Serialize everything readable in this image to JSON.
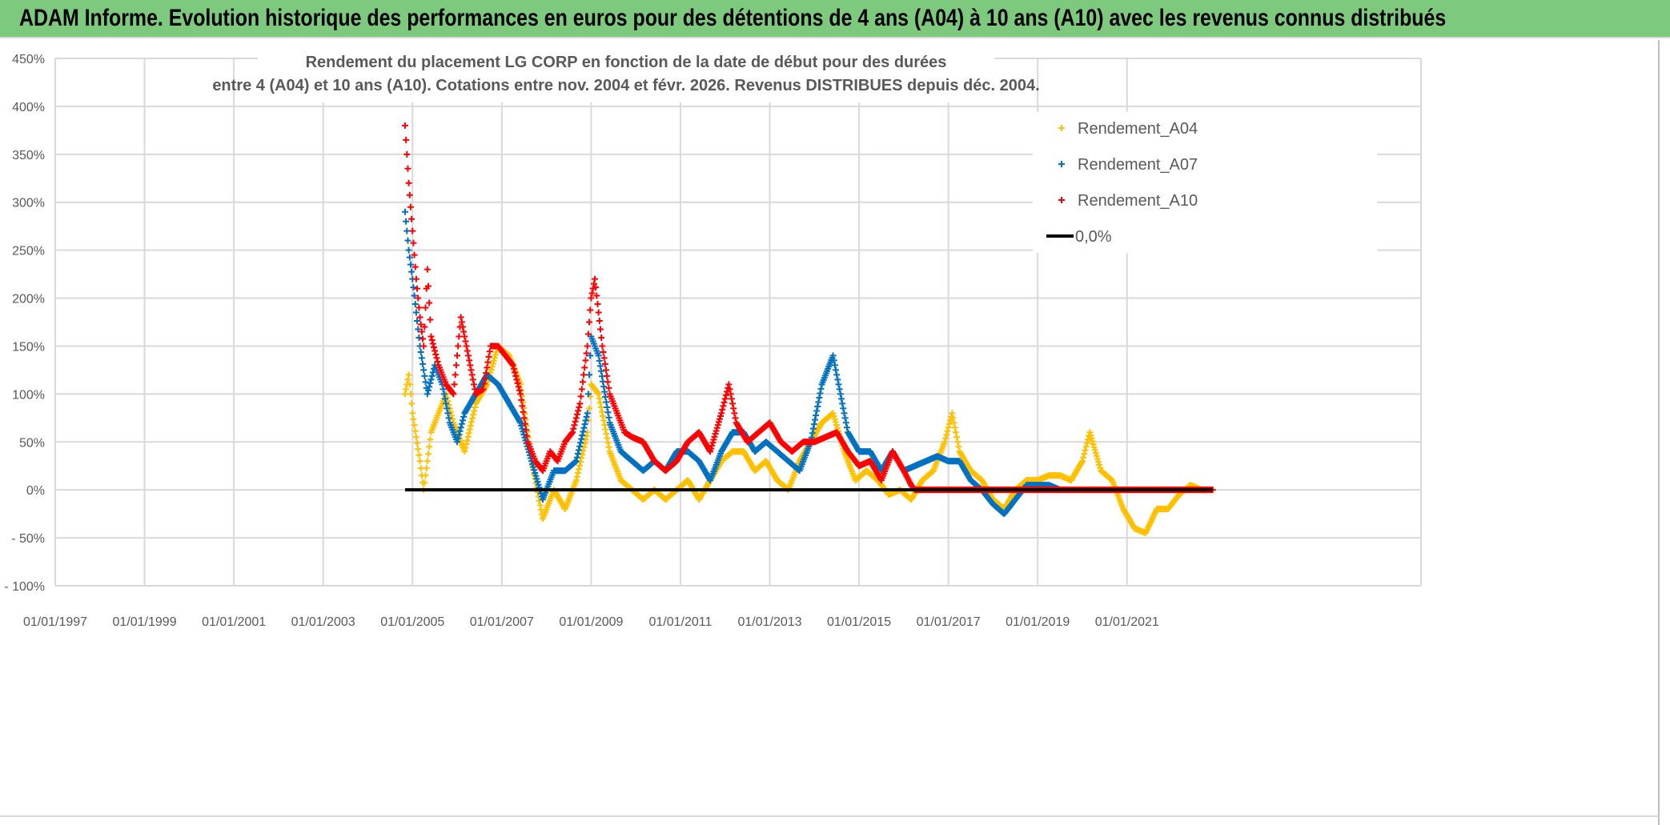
{
  "header": {
    "title": "ADAM Informe. Evolution historique des performances en euros pour des détentions de 4 ans (A04) à 10 ans (A10) avec les revenus connus distribués"
  },
  "chart_data": {
    "type": "scatter",
    "title_lines": [
      "Rendement du placement LG CORP en fonction de la date de début pour des durées",
      "entre 4 (A04) et 10 ans (A10). Cotations entre nov. 2004 et févr. 2026. Revenus DISTRIBUES depuis déc. 2004."
    ],
    "xlabel": "",
    "ylabel": "",
    "xlim": [
      "1997-01-01",
      "2027-08-01"
    ],
    "ylim": [
      -100,
      450
    ],
    "grid": true,
    "legend_position": "top-right",
    "x_tick_labels": [
      "01/01/1997",
      "01/01/1999",
      "01/01/2001",
      "01/01/2003",
      "01/01/2005",
      "01/01/2007",
      "01/01/2009",
      "01/01/2011",
      "01/01/2013",
      "01/01/2015",
      "01/01/2017",
      "01/01/2019",
      "01/01/2021"
    ],
    "y_ticks": [
      450,
      400,
      350,
      300,
      250,
      200,
      150,
      100,
      50,
      0,
      -50,
      -100
    ],
    "y_tick_labels": [
      "450%",
      "400%",
      "350%",
      "300%",
      "250%",
      "200%",
      "150%",
      "100%",
      "50%",
      "0%",
      "- 50%",
      "- 100%"
    ],
    "series": [
      {
        "name": "Rendement_A04",
        "color": "#ffc000",
        "marker": "plus",
        "x": [
          "2004-11",
          "2004-12",
          "2005-01",
          "2005-03",
          "2005-04",
          "2005-06",
          "2005-08",
          "2005-10",
          "2005-12",
          "2006-03",
          "2006-06",
          "2006-09",
          "2006-12",
          "2007-03",
          "2007-06",
          "2007-09",
          "2007-12",
          "2008-03",
          "2008-06",
          "2008-09",
          "2008-12",
          "2009-01",
          "2009-03",
          "2009-06",
          "2009-09",
          "2009-12",
          "2010-03",
          "2010-06",
          "2010-09",
          "2010-12",
          "2011-03",
          "2011-06",
          "2011-09",
          "2011-12",
          "2012-03",
          "2012-06",
          "2012-09",
          "2012-12",
          "2013-03",
          "2013-06",
          "2013-09",
          "2013-12",
          "2014-03",
          "2014-06",
          "2014-09",
          "2014-12",
          "2015-03",
          "2015-06",
          "2015-09",
          "2015-12",
          "2016-03",
          "2016-06",
          "2016-09",
          "2016-12",
          "2017-02",
          "2017-04",
          "2017-07",
          "2017-10",
          "2018-01",
          "2018-04",
          "2018-07",
          "2018-10",
          "2019-01",
          "2019-04",
          "2019-07",
          "2019-10",
          "2020-01",
          "2020-03",
          "2020-06",
          "2020-09",
          "2020-12",
          "2021-03",
          "2021-06",
          "2021-09",
          "2021-12",
          "2022-03",
          "2022-06",
          "2022-09",
          "2022-12"
        ],
        "y": [
          100,
          120,
          80,
          30,
          0,
          60,
          80,
          100,
          70,
          40,
          90,
          110,
          150,
          140,
          110,
          30,
          -30,
          0,
          -20,
          10,
          60,
          110,
          100,
          40,
          10,
          0,
          -10,
          0,
          -10,
          0,
          10,
          -10,
          10,
          30,
          40,
          40,
          20,
          30,
          10,
          0,
          30,
          50,
          70,
          80,
          40,
          10,
          20,
          10,
          -5,
          0,
          -10,
          10,
          20,
          50,
          80,
          40,
          20,
          10,
          -10,
          -20,
          0,
          10,
          10,
          15,
          15,
          10,
          30,
          60,
          20,
          10,
          -20,
          -40,
          -45,
          -20,
          -20,
          -5,
          5,
          0,
          0
        ]
      },
      {
        "name": "Rendement_A07",
        "color": "#0070c0",
        "marker": "plus",
        "x": [
          "2004-11",
          "2004-12",
          "2005-01",
          "2005-03",
          "2005-05",
          "2005-07",
          "2005-09",
          "2005-11",
          "2006-01",
          "2006-03",
          "2006-06",
          "2006-09",
          "2006-12",
          "2007-03",
          "2007-06",
          "2007-09",
          "2007-12",
          "2008-03",
          "2008-06",
          "2008-09",
          "2008-12",
          "2009-01",
          "2009-03",
          "2009-06",
          "2009-09",
          "2009-12",
          "2010-03",
          "2010-06",
          "2010-09",
          "2010-12",
          "2011-03",
          "2011-06",
          "2011-09",
          "2011-12",
          "2012-03",
          "2012-06",
          "2012-09",
          "2012-12",
          "2013-03",
          "2013-06",
          "2013-09",
          "2013-12",
          "2014-03",
          "2014-06",
          "2014-08",
          "2014-10",
          "2015-01",
          "2015-04",
          "2015-07",
          "2015-10",
          "2016-01",
          "2016-04",
          "2016-07",
          "2016-10",
          "2017-01",
          "2017-04",
          "2017-07",
          "2017-10",
          "2018-01",
          "2018-04",
          "2018-07",
          "2018-10",
          "2019-01",
          "2019-04",
          "2019-07"
        ],
        "y": [
          290,
          250,
          220,
          150,
          100,
          130,
          110,
          70,
          50,
          80,
          100,
          120,
          110,
          90,
          70,
          30,
          -10,
          20,
          20,
          30,
          80,
          160,
          140,
          70,
          40,
          30,
          20,
          30,
          20,
          40,
          40,
          30,
          10,
          40,
          60,
          60,
          40,
          50,
          40,
          30,
          20,
          50,
          110,
          140,
          100,
          60,
          40,
          40,
          20,
          40,
          20,
          25,
          30,
          35,
          30,
          30,
          10,
          0,
          -15,
          -25,
          -10,
          5,
          5,
          5,
          0
        ]
      },
      {
        "name": "Rendement_A10",
        "color": "#ff0000",
        "marker": "plus",
        "x": [
          "2004-11",
          "2004-12",
          "2005-01",
          "2005-02",
          "2005-03",
          "2005-04",
          "2005-05",
          "2005-06",
          "2005-08",
          "2005-10",
          "2005-12",
          "2006-02",
          "2006-04",
          "2006-06",
          "2006-08",
          "2006-10",
          "2006-12",
          "2007-02",
          "2007-04",
          "2007-06",
          "2007-08",
          "2007-10",
          "2007-12",
          "2008-02",
          "2008-04",
          "2008-06",
          "2008-08",
          "2008-10",
          "2008-12",
          "2009-01",
          "2009-02",
          "2009-04",
          "2009-06",
          "2009-08",
          "2009-10",
          "2009-12",
          "2010-03",
          "2010-06",
          "2010-09",
          "2010-12",
          "2011-03",
          "2011-06",
          "2011-09",
          "2011-12",
          "2012-02",
          "2012-04",
          "2012-07",
          "2012-10",
          "2013-01",
          "2013-04",
          "2013-07",
          "2013-10",
          "2014-01",
          "2014-04",
          "2014-07",
          "2014-10",
          "2015-01",
          "2015-04",
          "2015-07",
          "2015-10",
          "2016-01",
          "2016-03",
          "2016-04",
          "2022-12"
        ],
        "y": [
          380,
          320,
          270,
          220,
          180,
          150,
          230,
          160,
          130,
          110,
          100,
          180,
          140,
          100,
          105,
          150,
          150,
          140,
          130,
          100,
          50,
          30,
          20,
          40,
          30,
          50,
          60,
          90,
          150,
          200,
          220,
          150,
          100,
          80,
          60,
          55,
          50,
          30,
          20,
          30,
          50,
          60,
          40,
          80,
          110,
          70,
          50,
          60,
          70,
          50,
          40,
          50,
          50,
          55,
          60,
          40,
          25,
          30,
          10,
          40,
          20,
          5,
          0,
          0
        ]
      },
      {
        "name": "0,0%",
        "color": "#000000",
        "marker": "line",
        "x": [
          "2004-11",
          "2022-12"
        ],
        "y": [
          0,
          0
        ]
      }
    ]
  }
}
